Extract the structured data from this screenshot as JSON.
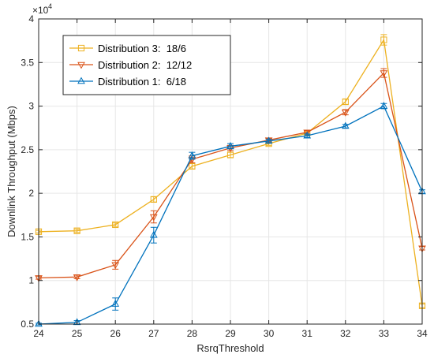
{
  "chart_data": {
    "type": "line",
    "title": "",
    "xlabel": "RsrqThreshold",
    "ylabel": "Downlink Throughput (Mbps)",
    "y_exponent_label": "×10",
    "y_exponent_power": "4",
    "x": [
      24,
      25,
      26,
      27,
      28,
      29,
      30,
      31,
      32,
      33,
      34
    ],
    "xlim": [
      24,
      34
    ],
    "ylim": [
      5000,
      40000
    ],
    "x_ticks": [
      "24",
      "25",
      "26",
      "27",
      "28",
      "29",
      "30",
      "31",
      "32",
      "33",
      "34"
    ],
    "y_ticks": [
      "0.5",
      "1",
      "1.5",
      "2",
      "2.5",
      "3",
      "3.5",
      "4"
    ],
    "y_tick_values": [
      5000,
      10000,
      15000,
      20000,
      25000,
      30000,
      35000,
      40000
    ],
    "grid": true,
    "legend_position": "top-left",
    "series": [
      {
        "name": "Distribution 3:  18/6",
        "color": "#EDB120",
        "marker": "square",
        "values": [
          15600,
          15700,
          16400,
          19300,
          23100,
          24400,
          25700,
          26900,
          30500,
          37600,
          7100
        ],
        "errors": [
          150,
          200,
          200,
          300,
          300,
          300,
          200,
          200,
          300,
          600,
          200
        ]
      },
      {
        "name": "Distribution 2:  12/12",
        "color": "#D95319",
        "marker": "triangle-down",
        "values": [
          10300,
          10400,
          11800,
          17300,
          23900,
          25200,
          26100,
          27000,
          29300,
          33800,
          13700
        ],
        "errors": [
          150,
          200,
          500,
          700,
          400,
          300,
          200,
          200,
          300,
          500,
          200
        ]
      },
      {
        "name": "Distribution 1:  6/18",
        "color": "#0072BD",
        "marker": "triangle-up",
        "values": [
          5000,
          5200,
          7300,
          15200,
          24300,
          25400,
          26000,
          26600,
          27700,
          30000,
          20200
        ],
        "errors": [
          100,
          200,
          700,
          900,
          400,
          300,
          200,
          200,
          200,
          300,
          200
        ]
      }
    ]
  }
}
